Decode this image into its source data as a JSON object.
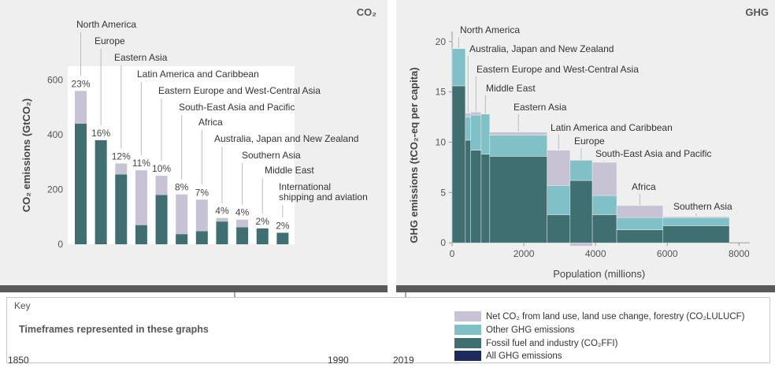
{
  "colors": {
    "lulucf": "#c8c3d4",
    "other_ghg": "#7fc1c7",
    "ffi": "#3f6f70",
    "all_ghg": "#1d2a5c",
    "panel_bg": "#efefef",
    "band": "#5a5a5a",
    "timeline": "#8c8c8c"
  },
  "panels": {
    "left_tag": "CO₂",
    "right_tag": "GHG"
  },
  "chart_data": [
    {
      "type": "bar",
      "stacked": true,
      "ylabel": "CO₂ emissions (GtCO₂)",
      "ylim": [
        0,
        650
      ],
      "yticks": [
        0,
        200,
        400,
        600
      ],
      "grid": false,
      "categories": [
        "North America",
        "Europe",
        "Eastern Asia",
        "Latin America and Caribbean",
        "Eastern Europe and West-Central Asia",
        "South-East Asia and Pacific",
        "Africa",
        "Australia, Japan and New Zealand",
        "Southern Asia",
        "Middle East",
        "International shipping and aviation"
      ],
      "label_lines": [
        [
          "North America"
        ],
        [
          "Europe"
        ],
        [
          "Eastern Asia"
        ],
        [
          "Latin America and Caribbean"
        ],
        [
          "Eastern Europe and West-Central Asia"
        ],
        [
          "South-East Asia and Pacific"
        ],
        [
          "Africa"
        ],
        [
          "Australia, Japan and New Zealand"
        ],
        [
          "Southern Asia"
        ],
        [
          "Middle East"
        ],
        [
          "International",
          "shipping and aviation"
        ]
      ],
      "shares": [
        "23%",
        "16%",
        "12%",
        "11%",
        "10%",
        "8%",
        "7%",
        "4%",
        "4%",
        "2%",
        "2%"
      ],
      "series": [
        {
          "name": "Fossil fuel and industry (CO₂FFI)",
          "key": "ffi",
          "values": [
            440,
            380,
            255,
            70,
            180,
            37,
            48,
            83,
            62,
            58,
            42
          ]
        },
        {
          "name": "Net CO₂ from land use, land use change, forestry (CO₂LULUCF)",
          "key": "lulucf",
          "values": [
            120,
            0,
            40,
            200,
            70,
            145,
            115,
            13,
            28,
            0,
            0
          ]
        }
      ]
    },
    {
      "type": "bar",
      "variable_width": true,
      "ylabel": "GHG emissions (tCO₂-eq per capita)",
      "xlabel": "Population (millions)",
      "xlim": [
        0,
        8300
      ],
      "ylim": [
        -0.3,
        21
      ],
      "xticks": [
        0,
        2000,
        4000,
        6000,
        8000
      ],
      "yticks": [
        0,
        5,
        10,
        15,
        20
      ],
      "grid": false,
      "regions": [
        {
          "name": "North America",
          "pop": 370,
          "ffi": 15.6,
          "other": 3.7,
          "lulucf": 0
        },
        {
          "name": "Australia, Japan and New Zealand",
          "pop": 150,
          "ffi": 10.2,
          "other": 2.3,
          "lulucf": 0.4
        },
        {
          "name": "Eastern Europe and West-Central Asia",
          "pop": 290,
          "ffi": 9.2,
          "other": 3.5,
          "lulucf": 0.3
        },
        {
          "name": "Middle East",
          "pop": 240,
          "ffi": 8.8,
          "other": 4.0,
          "lulucf": 0
        },
        {
          "name": "Eastern Asia",
          "pop": 1600,
          "ffi": 8.6,
          "other": 2.1,
          "lulucf": 0.3
        },
        {
          "name": "Latin America and Caribbean",
          "pop": 640,
          "ffi": 2.8,
          "other": 2.9,
          "lulucf": 3.5
        },
        {
          "name": "Europe",
          "pop": 620,
          "ffi": 6.2,
          "other": 2.0,
          "lulucf": -0.3
        },
        {
          "name": "South-East Asia and Pacific",
          "pop": 680,
          "ffi": 2.8,
          "other": 1.9,
          "lulucf": 3.3
        },
        {
          "name": "Africa",
          "pop": 1290,
          "ffi": 1.3,
          "other": 1.2,
          "lulucf": 1.2
        },
        {
          "name": "Southern Asia",
          "pop": 1850,
          "ffi": 1.7,
          "other": 0.8,
          "lulucf": 0.1
        }
      ]
    }
  ],
  "key": {
    "title": "Key",
    "timeframe_heading": "Timeframes represented in these graphs",
    "years": {
      "start": "1850",
      "mid": "1990",
      "end": "2019"
    },
    "legend": [
      {
        "label": "Net CO₂ from land use, land use change, forestry (CO₂LULUCF)",
        "color_key": "lulucf"
      },
      {
        "label": "Other GHG emissions",
        "color_key": "other_ghg"
      },
      {
        "label": "Fossil fuel and industry (CO₂FFI)",
        "color_key": "ffi"
      },
      {
        "label": "All GHG emissions",
        "color_key": "all_ghg"
      }
    ]
  }
}
